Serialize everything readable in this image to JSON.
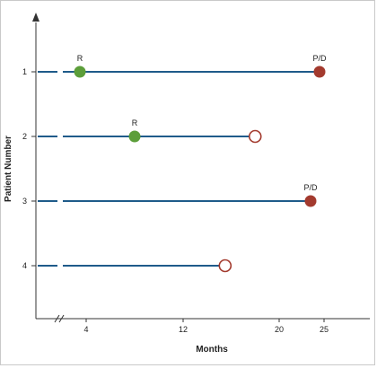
{
  "colors": {
    "axis": "#333333",
    "swimlane": "#1f5b8a",
    "response_marker": "#5c9e3a",
    "progression_death_marker": "#a33a2e",
    "open_marker_stroke": "#a33a2e"
  },
  "chart_data": {
    "type": "swimmer",
    "xlabel": "Months",
    "ylabel": "Patient Number",
    "x_ticks": [
      4,
      12,
      20,
      25
    ],
    "y_ticks": [
      "1",
      "2",
      "3",
      "4"
    ],
    "axis_break": true,
    "patients": [
      {
        "patient": "1",
        "duration": 24.5,
        "events": [
          {
            "type": "response",
            "x": 3.5,
            "label": "R"
          },
          {
            "type": "progression_death",
            "x": 24.5,
            "label": "P/D"
          }
        ]
      },
      {
        "patient": "2",
        "duration": 18,
        "events": [
          {
            "type": "response",
            "x": 8.0,
            "label": "R"
          },
          {
            "type": "ongoing",
            "x": 18.0,
            "label": ""
          }
        ]
      },
      {
        "patient": "3",
        "duration": 23.5,
        "events": [
          {
            "type": "progression_death",
            "x": 23.5,
            "label": "P/D"
          }
        ]
      },
      {
        "patient": "4",
        "duration": 15.5,
        "events": [
          {
            "type": "ongoing",
            "x": 15.5,
            "label": ""
          }
        ]
      }
    ]
  }
}
